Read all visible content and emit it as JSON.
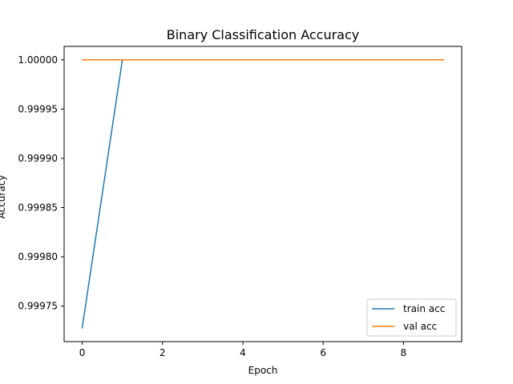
{
  "chart_data": {
    "type": "line",
    "title": "Binary Classification Accuracy",
    "xlabel": "Epoch",
    "ylabel": "Accuracy",
    "xlim": [
      -0.45,
      9.45
    ],
    "ylim": [
      0.999714,
      1.0000136
    ],
    "x": [
      0,
      1,
      2,
      3,
      4,
      5,
      6,
      7,
      8,
      9
    ],
    "x_ticks": [
      0,
      2,
      4,
      6,
      8
    ],
    "x_tick_labels": [
      "0",
      "2",
      "4",
      "6",
      "8"
    ],
    "y_ticks": [
      0.99975,
      0.9998,
      0.99985,
      0.9999,
      0.99995,
      1.0
    ],
    "y_tick_labels": [
      "0.99975",
      "0.99980",
      "0.99985",
      "0.99990",
      "0.99995",
      "1.00000"
    ],
    "grid": false,
    "legend_position": "lower-right",
    "series": [
      {
        "name": "train acc",
        "color": "#1f77b4",
        "values": [
          0.999728,
          1.0,
          1.0,
          1.0,
          1.0,
          1.0,
          1.0,
          1.0,
          1.0,
          1.0
        ]
      },
      {
        "name": "val acc",
        "color": "#ff7f0e",
        "values": [
          1.0,
          1.0,
          1.0,
          1.0,
          1.0,
          1.0,
          1.0,
          1.0,
          1.0,
          1.0
        ]
      }
    ]
  }
}
